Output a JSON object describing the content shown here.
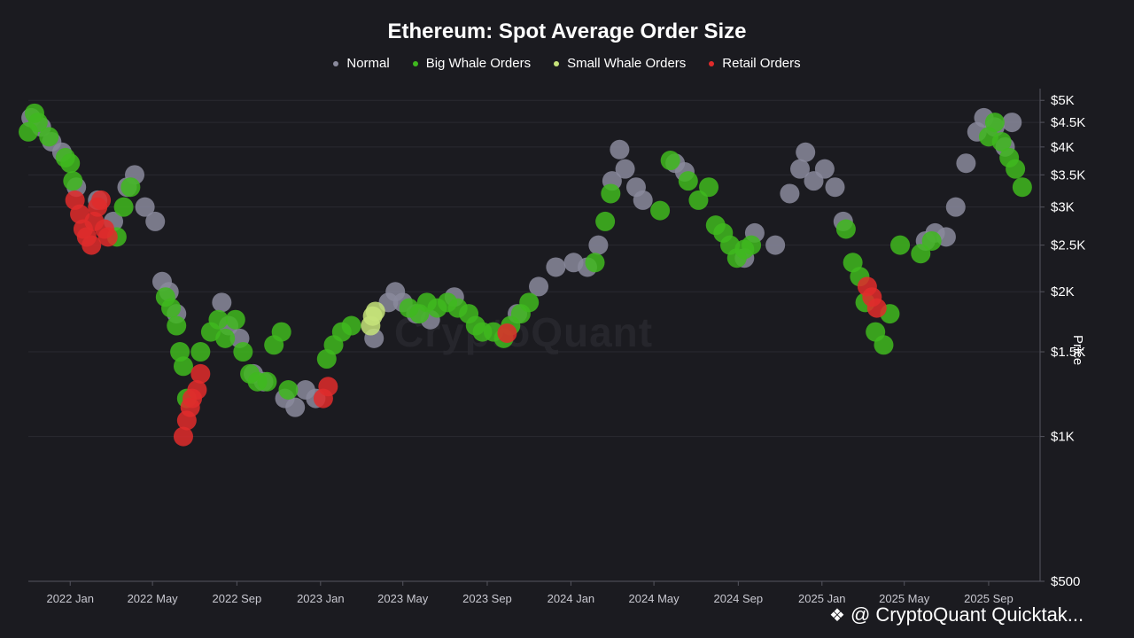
{
  "chart_data": {
    "type": "scatter",
    "title": "Ethereum: Spot Average Order Size",
    "ylabel": "Price",
    "y_scale": "log",
    "ylim": [
      500,
      5200
    ],
    "xlim": [
      "2021-11-01",
      "2025-11-15"
    ],
    "x_ticks": [
      "2022 Jan",
      "2022 May",
      "2022 Sep",
      "2023 Jan",
      "2023 May",
      "2023 Sep",
      "2024 Jan",
      "2024 May",
      "2024 Sep",
      "2025 Jan",
      "2025 May",
      "2025 Sep"
    ],
    "y_ticks": [
      {
        "label": "$5K",
        "value": 5000
      },
      {
        "label": "$4.5K",
        "value": 4500
      },
      {
        "label": "$4K",
        "value": 4000
      },
      {
        "label": "$3.5K",
        "value": 3500
      },
      {
        "label": "$3K",
        "value": 3000
      },
      {
        "label": "$2.5K",
        "value": 2500
      },
      {
        "label": "$2K",
        "value": 2000
      },
      {
        "label": "$1.5K",
        "value": 1500
      },
      {
        "label": "$1K",
        "value": 1000
      },
      {
        "label": "$500",
        "value": 500
      }
    ],
    "grid": true,
    "legend_position": "top-center",
    "series": [
      {
        "name": "Normal",
        "color": "#8a8a9c",
        "points": [
          [
            "2021-11-05",
            4600
          ],
          [
            "2021-11-20",
            4400
          ],
          [
            "2021-12-05",
            4100
          ],
          [
            "2021-12-20",
            3900
          ],
          [
            "2022-01-10",
            3300
          ],
          [
            "2022-02-10",
            3100
          ],
          [
            "2022-03-05",
            2800
          ],
          [
            "2022-03-25",
            3300
          ],
          [
            "2022-04-05",
            3500
          ],
          [
            "2022-04-20",
            3000
          ],
          [
            "2022-05-05",
            2800
          ],
          [
            "2022-05-15",
            2100
          ],
          [
            "2022-05-25",
            2000
          ],
          [
            "2022-06-05",
            1800
          ],
          [
            "2022-08-10",
            1900
          ],
          [
            "2022-08-20",
            1700
          ],
          [
            "2022-09-05",
            1600
          ],
          [
            "2022-09-25",
            1350
          ],
          [
            "2022-10-10",
            1300
          ],
          [
            "2022-11-10",
            1200
          ],
          [
            "2022-11-25",
            1150
          ],
          [
            "2022-12-10",
            1250
          ],
          [
            "2022-12-25",
            1200
          ],
          [
            "2023-04-10",
            1900
          ],
          [
            "2023-04-20",
            2000
          ],
          [
            "2023-05-01",
            1900
          ],
          [
            "2023-05-20",
            1800
          ],
          [
            "2023-06-10",
            1750
          ],
          [
            "2023-07-15",
            1950
          ],
          [
            "2023-03-20",
            1600
          ],
          [
            "2023-10-15",
            1800
          ],
          [
            "2023-11-15",
            2050
          ],
          [
            "2023-12-10",
            2250
          ],
          [
            "2024-01-05",
            2300
          ],
          [
            "2024-01-25",
            2250
          ],
          [
            "2024-02-10",
            2500
          ],
          [
            "2024-03-01",
            3400
          ],
          [
            "2024-03-12",
            3950
          ],
          [
            "2024-03-20",
            3600
          ],
          [
            "2024-04-05",
            3300
          ],
          [
            "2024-04-15",
            3100
          ],
          [
            "2024-06-01",
            3700
          ],
          [
            "2024-06-15",
            3550
          ],
          [
            "2024-09-10",
            2350
          ],
          [
            "2024-09-25",
            2650
          ],
          [
            "2024-10-25",
            2500
          ],
          [
            "2024-11-15",
            3200
          ],
          [
            "2024-11-30",
            3600
          ],
          [
            "2024-12-08",
            3900
          ],
          [
            "2024-12-20",
            3400
          ],
          [
            "2025-01-05",
            3600
          ],
          [
            "2025-01-20",
            3300
          ],
          [
            "2025-02-01",
            2800
          ],
          [
            "2025-06-01",
            2550
          ],
          [
            "2025-06-15",
            2650
          ],
          [
            "2025-07-01",
            2600
          ],
          [
            "2025-07-15",
            3000
          ],
          [
            "2025-07-30",
            3700
          ],
          [
            "2025-08-15",
            4300
          ],
          [
            "2025-08-25",
            4600
          ],
          [
            "2025-09-10",
            4400
          ],
          [
            "2025-09-25",
            4000
          ],
          [
            "2025-10-05",
            4500
          ]
        ]
      },
      {
        "name": "Big Whale Orders",
        "color": "#3fb81e",
        "points": [
          [
            "2021-11-01",
            4300
          ],
          [
            "2021-11-10",
            4700
          ],
          [
            "2021-11-15",
            4500
          ],
          [
            "2021-12-01",
            4200
          ],
          [
            "2021-12-25",
            3800
          ],
          [
            "2022-01-01",
            3700
          ],
          [
            "2022-01-05",
            3400
          ],
          [
            "2022-03-10",
            2600
          ],
          [
            "2022-03-20",
            3000
          ],
          [
            "2022-03-30",
            3300
          ],
          [
            "2022-05-20",
            1950
          ],
          [
            "2022-05-28",
            1850
          ],
          [
            "2022-06-05",
            1700
          ],
          [
            "2022-06-10",
            1500
          ],
          [
            "2022-06-15",
            1400
          ],
          [
            "2022-06-20",
            1200
          ],
          [
            "2022-07-10",
            1500
          ],
          [
            "2022-07-25",
            1650
          ],
          [
            "2022-08-05",
            1750
          ],
          [
            "2022-08-15",
            1600
          ],
          [
            "2022-08-30",
            1750
          ],
          [
            "2022-09-10",
            1500
          ],
          [
            "2022-09-20",
            1350
          ],
          [
            "2022-10-01",
            1300
          ],
          [
            "2022-10-15",
            1300
          ],
          [
            "2022-10-25",
            1550
          ],
          [
            "2022-11-05",
            1650
          ],
          [
            "2022-11-15",
            1250
          ],
          [
            "2023-01-10",
            1450
          ],
          [
            "2023-01-20",
            1550
          ],
          [
            "2023-02-01",
            1650
          ],
          [
            "2023-02-15",
            1700
          ],
          [
            "2023-05-10",
            1850
          ],
          [
            "2023-05-25",
            1800
          ],
          [
            "2023-06-05",
            1900
          ],
          [
            "2023-06-20",
            1850
          ],
          [
            "2023-07-05",
            1900
          ],
          [
            "2023-07-20",
            1850
          ],
          [
            "2023-08-05",
            1800
          ],
          [
            "2023-08-15",
            1700
          ],
          [
            "2023-08-25",
            1650
          ],
          [
            "2023-09-10",
            1650
          ],
          [
            "2023-09-25",
            1600
          ],
          [
            "2023-10-05",
            1700
          ],
          [
            "2023-10-20",
            1800
          ],
          [
            "2023-11-01",
            1900
          ],
          [
            "2024-02-05",
            2300
          ],
          [
            "2024-02-20",
            2800
          ],
          [
            "2024-02-28",
            3200
          ],
          [
            "2024-05-10",
            2950
          ],
          [
            "2024-05-25",
            3750
          ],
          [
            "2024-06-20",
            3400
          ],
          [
            "2024-07-05",
            3100
          ],
          [
            "2024-07-20",
            3300
          ],
          [
            "2024-07-30",
            2750
          ],
          [
            "2024-08-10",
            2650
          ],
          [
            "2024-08-20",
            2500
          ],
          [
            "2024-08-30",
            2350
          ],
          [
            "2024-09-10",
            2450
          ],
          [
            "2024-09-20",
            2500
          ],
          [
            "2025-02-05",
            2700
          ],
          [
            "2025-02-15",
            2300
          ],
          [
            "2025-02-25",
            2150
          ],
          [
            "2025-03-05",
            1900
          ],
          [
            "2025-03-20",
            1650
          ],
          [
            "2025-04-01",
            1550
          ],
          [
            "2025-04-10",
            1800
          ],
          [
            "2025-04-25",
            2500
          ],
          [
            "2025-05-25",
            2400
          ],
          [
            "2025-06-10",
            2550
          ],
          [
            "2025-09-01",
            4200
          ],
          [
            "2025-09-10",
            4500
          ],
          [
            "2025-09-20",
            4100
          ],
          [
            "2025-10-01",
            3800
          ],
          [
            "2025-10-10",
            3600
          ],
          [
            "2025-10-20",
            3300
          ]
        ]
      },
      {
        "name": "Small Whale Orders",
        "color": "#c6e37a",
        "points": [
          [
            "2023-03-15",
            1700
          ],
          [
            "2023-03-18",
            1780
          ],
          [
            "2023-03-22",
            1820
          ]
        ]
      },
      {
        "name": "Retail Orders",
        "color": "#e02b2b",
        "points": [
          [
            "2022-01-08",
            3100
          ],
          [
            "2022-01-15",
            2900
          ],
          [
            "2022-01-20",
            2700
          ],
          [
            "2022-01-25",
            2600
          ],
          [
            "2022-02-01",
            2500
          ],
          [
            "2022-02-05",
            2800
          ],
          [
            "2022-02-10",
            3000
          ],
          [
            "2022-02-15",
            3100
          ],
          [
            "2022-02-20",
            2700
          ],
          [
            "2022-02-25",
            2600
          ],
          [
            "2022-06-15",
            1000
          ],
          [
            "2022-06-20",
            1080
          ],
          [
            "2022-06-25",
            1150
          ],
          [
            "2022-06-28",
            1200
          ],
          [
            "2022-07-05",
            1250
          ],
          [
            "2022-07-10",
            1350
          ],
          [
            "2023-01-05",
            1200
          ],
          [
            "2023-01-12",
            1270
          ],
          [
            "2023-09-30",
            1640
          ],
          [
            "2025-03-08",
            2050
          ],
          [
            "2025-03-15",
            1950
          ],
          [
            "2025-03-22",
            1850
          ]
        ]
      }
    ]
  },
  "watermark": "CryptoQuant",
  "footer_text": "@ CryptoQuant Quicktak..."
}
